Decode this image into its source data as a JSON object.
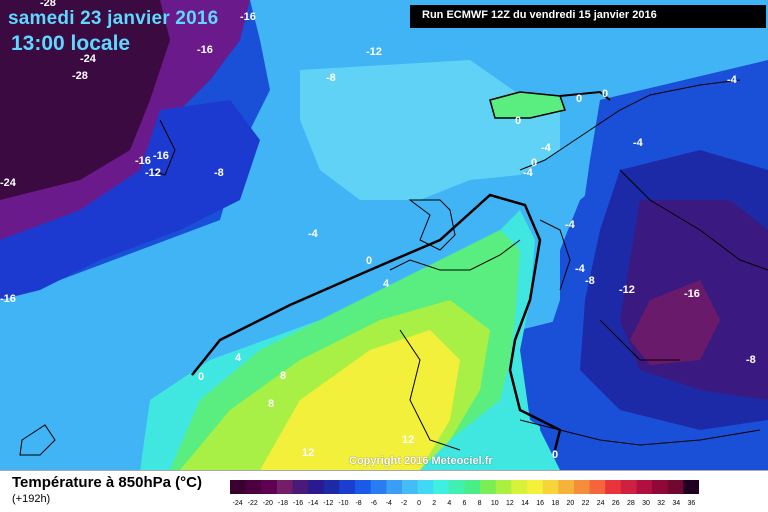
{
  "header": {
    "date": "samedi 23 janvier 2016",
    "time": "13:00 locale",
    "run": "Run ECMWF 12Z du vendredi 15 janvier 2016"
  },
  "copyright": "Copyright 2016 Meteociel.fr",
  "legend": {
    "title": "Température à 850hPa (°C)",
    "subtitle": "(+192h)",
    "ticks": [
      "-24",
      "-22",
      "-20",
      "-18",
      "-16",
      "-14",
      "-12",
      "-10",
      "-8",
      "-6",
      "-4",
      "-2",
      "0",
      "2",
      "4",
      "6",
      "8",
      "10",
      "12",
      "14",
      "16",
      "18",
      "20",
      "22",
      "24",
      "26",
      "28",
      "30",
      "32",
      "34",
      "36"
    ],
    "colors": [
      "#3a0030",
      "#4d0040",
      "#600050",
      "#731e66",
      "#4a1a7a",
      "#2a1a90",
      "#1d2aa8",
      "#1a3fd0",
      "#1a5ae8",
      "#2a7cf2",
      "#3a9ef5",
      "#44bdf7",
      "#40d8f5",
      "#3ef0e0",
      "#40f0b0",
      "#4aee88",
      "#7aee55",
      "#aaf040",
      "#d8f23a",
      "#f5f03a",
      "#f5d53a",
      "#f5b33a",
      "#f58e3a",
      "#f5643a",
      "#e8343a",
      "#d02040",
      "#b01040",
      "#900838",
      "#700830",
      "#200020"
    ]
  },
  "map_values": [
    {
      "id": "v1",
      "text": "-28"
    },
    {
      "id": "v2",
      "text": "-16"
    },
    {
      "id": "v3",
      "text": "-24"
    },
    {
      "id": "v4",
      "text": "-28"
    },
    {
      "id": "v5",
      "text": "-16"
    },
    {
      "id": "v6",
      "text": "-12"
    },
    {
      "id": "v7",
      "text": "-8"
    },
    {
      "id": "v8",
      "text": "-16"
    },
    {
      "id": "v9",
      "text": "-16"
    },
    {
      "id": "v10",
      "text": "-12"
    },
    {
      "id": "v11",
      "text": "-24"
    },
    {
      "id": "v12",
      "text": "-8"
    },
    {
      "id": "v13",
      "text": "-4"
    },
    {
      "id": "v14",
      "text": "-16"
    },
    {
      "id": "v15",
      "text": "0"
    },
    {
      "id": "v16",
      "text": "0"
    },
    {
      "id": "v17",
      "text": "0"
    },
    {
      "id": "v18",
      "text": "-4"
    },
    {
      "id": "v19",
      "text": "-4"
    },
    {
      "id": "v20",
      "text": "0"
    },
    {
      "id": "v21",
      "text": "-4"
    },
    {
      "id": "v22",
      "text": "-4"
    },
    {
      "id": "v23",
      "text": "-4"
    },
    {
      "id": "v24",
      "text": "-4"
    },
    {
      "id": "v25",
      "text": "-8"
    },
    {
      "id": "v26",
      "text": "-12"
    },
    {
      "id": "v27",
      "text": "-16"
    },
    {
      "id": "v28",
      "text": "-8"
    },
    {
      "id": "v29",
      "text": "0"
    },
    {
      "id": "v30",
      "text": "4"
    },
    {
      "id": "v31",
      "text": "4"
    },
    {
      "id": "v32",
      "text": "0"
    },
    {
      "id": "v33",
      "text": "8"
    },
    {
      "id": "v34",
      "text": "8"
    },
    {
      "id": "v35",
      "text": "12"
    },
    {
      "id": "v36",
      "text": "12"
    },
    {
      "id": "v37",
      "text": "0"
    }
  ]
}
